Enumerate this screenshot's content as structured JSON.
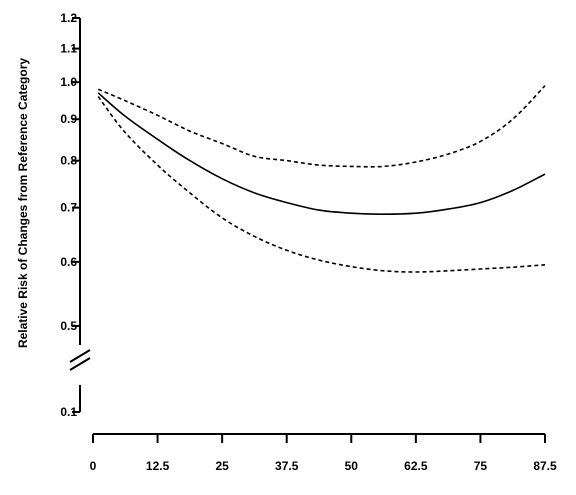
{
  "chart_data": {
    "type": "line",
    "title": "",
    "xlabel": "",
    "ylabel": "Relative Risk of Changes from Reference Category",
    "x_ticks": [
      "0",
      "12.5",
      "25",
      "37.5",
      "50",
      "62.5",
      "75",
      "87.5"
    ],
    "x_tick_values": [
      0,
      12.5,
      25,
      37.5,
      50,
      62.5,
      75,
      87.5
    ],
    "y_ticks": [
      "0.1",
      "0.5",
      "0.6",
      "0.7",
      "0.8",
      "0.9",
      "1.0",
      "1.1",
      "1.2"
    ],
    "y_tick_values": [
      0.1,
      0.5,
      0.6,
      0.7,
      0.8,
      0.9,
      1.0,
      1.1,
      1.2
    ],
    "y_scale": "log",
    "y_axis_break": "between 0.1 and 0.5",
    "xlim": [
      0,
      87.5
    ],
    "ylim": [
      0.1,
      1.2
    ],
    "grid": false,
    "series": [
      {
        "style": "solid",
        "x": [
          1,
          6,
          12.5,
          18.75,
          25,
          31.25,
          37.5,
          43.75,
          50,
          56.25,
          62.5,
          68.75,
          75,
          81.25,
          87.5
        ],
        "y": [
          0.97,
          0.91,
          0.85,
          0.8,
          0.76,
          0.73,
          0.71,
          0.695,
          0.689,
          0.687,
          0.689,
          0.697,
          0.71,
          0.735,
          0.77
        ]
      },
      {
        "style": "dashed",
        "x": [
          1,
          6,
          12.5,
          18.75,
          25,
          31.25,
          37.5,
          43.75,
          50,
          56.25,
          62.5,
          68.75,
          75,
          81.25,
          87.5
        ],
        "y": [
          0.98,
          0.95,
          0.91,
          0.87,
          0.84,
          0.81,
          0.8,
          0.79,
          0.787,
          0.787,
          0.797,
          0.815,
          0.845,
          0.9,
          0.99
        ]
      },
      {
        "style": "dashed",
        "x": [
          1,
          6,
          12.5,
          18.75,
          25,
          31.25,
          37.5,
          43.75,
          50,
          56.25,
          62.5,
          68.75,
          75,
          81.25,
          87.5
        ],
        "y": [
          0.96,
          0.87,
          0.79,
          0.73,
          0.68,
          0.645,
          0.62,
          0.603,
          0.592,
          0.585,
          0.583,
          0.585,
          0.588,
          0.591,
          0.595
        ]
      }
    ]
  }
}
